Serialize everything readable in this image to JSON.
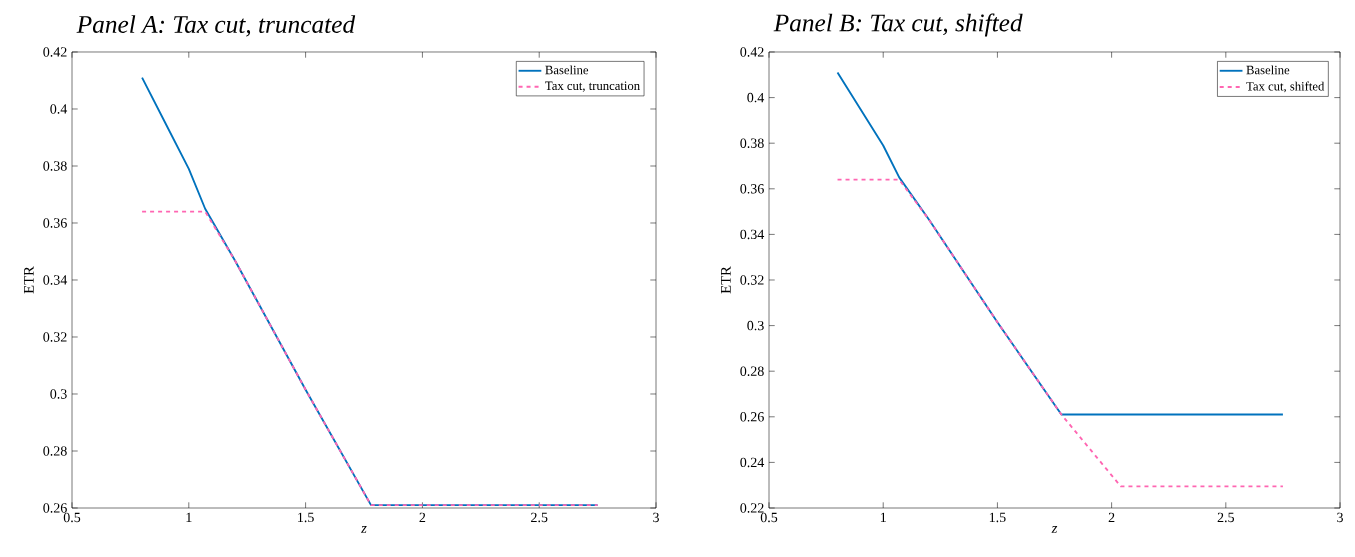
{
  "chart_data": [
    {
      "type": "line",
      "title": "Panel A: Tax cut, truncated",
      "xlabel": "z",
      "ylabel": "ETR",
      "xlim": [
        0.5,
        3
      ],
      "ylim": [
        0.26,
        0.42
      ],
      "xticks": [
        0.5,
        1,
        1.5,
        2,
        2.5,
        3
      ],
      "yticks": [
        0.26,
        0.28,
        0.3,
        0.32,
        0.34,
        0.36,
        0.38,
        0.4,
        0.42
      ],
      "legend": "top right",
      "grid": false,
      "series": [
        {
          "name": "Baseline",
          "color": "#0072bd",
          "line_style": "solid",
          "x": [
            0.8,
            0.9,
            1.0,
            1.07,
            1.2,
            1.5,
            1.78,
            2.75
          ],
          "values": [
            0.411,
            0.395,
            0.379,
            0.365,
            0.3465,
            0.3015,
            0.261,
            0.261
          ]
        },
        {
          "name": "Tax cut, truncation",
          "color": "#ff66b2",
          "line_style": "dashed",
          "x": [
            0.8,
            1.07,
            1.2,
            1.5,
            1.78,
            2.75
          ],
          "values": [
            0.364,
            0.364,
            0.3465,
            0.3015,
            0.261,
            0.261
          ]
        }
      ]
    },
    {
      "type": "line",
      "title": "Panel B: Tax cut, shifted",
      "xlabel": "z",
      "ylabel": "ETR",
      "xlim": [
        0.5,
        3
      ],
      "ylim": [
        0.22,
        0.42
      ],
      "xticks": [
        0.5,
        1,
        1.5,
        2,
        2.5,
        3
      ],
      "yticks": [
        0.22,
        0.24,
        0.26,
        0.28,
        0.3,
        0.32,
        0.34,
        0.36,
        0.38,
        0.4,
        0.42
      ],
      "legend": "top right",
      "grid": false,
      "series": [
        {
          "name": "Baseline",
          "color": "#0072bd",
          "line_style": "solid",
          "x": [
            0.8,
            0.9,
            1.0,
            1.07,
            1.2,
            1.5,
            1.78,
            2.75
          ],
          "values": [
            0.411,
            0.395,
            0.379,
            0.365,
            0.3465,
            0.3015,
            0.261,
            0.261
          ]
        },
        {
          "name": "Tax cut, shifted",
          "color": "#ff66b2",
          "line_style": "dashed",
          "x": [
            0.8,
            1.07,
            1.2,
            1.5,
            1.78,
            2.04,
            2.75
          ],
          "values": [
            0.364,
            0.364,
            0.3465,
            0.3015,
            0.261,
            0.2295,
            0.2295
          ]
        }
      ]
    }
  ]
}
